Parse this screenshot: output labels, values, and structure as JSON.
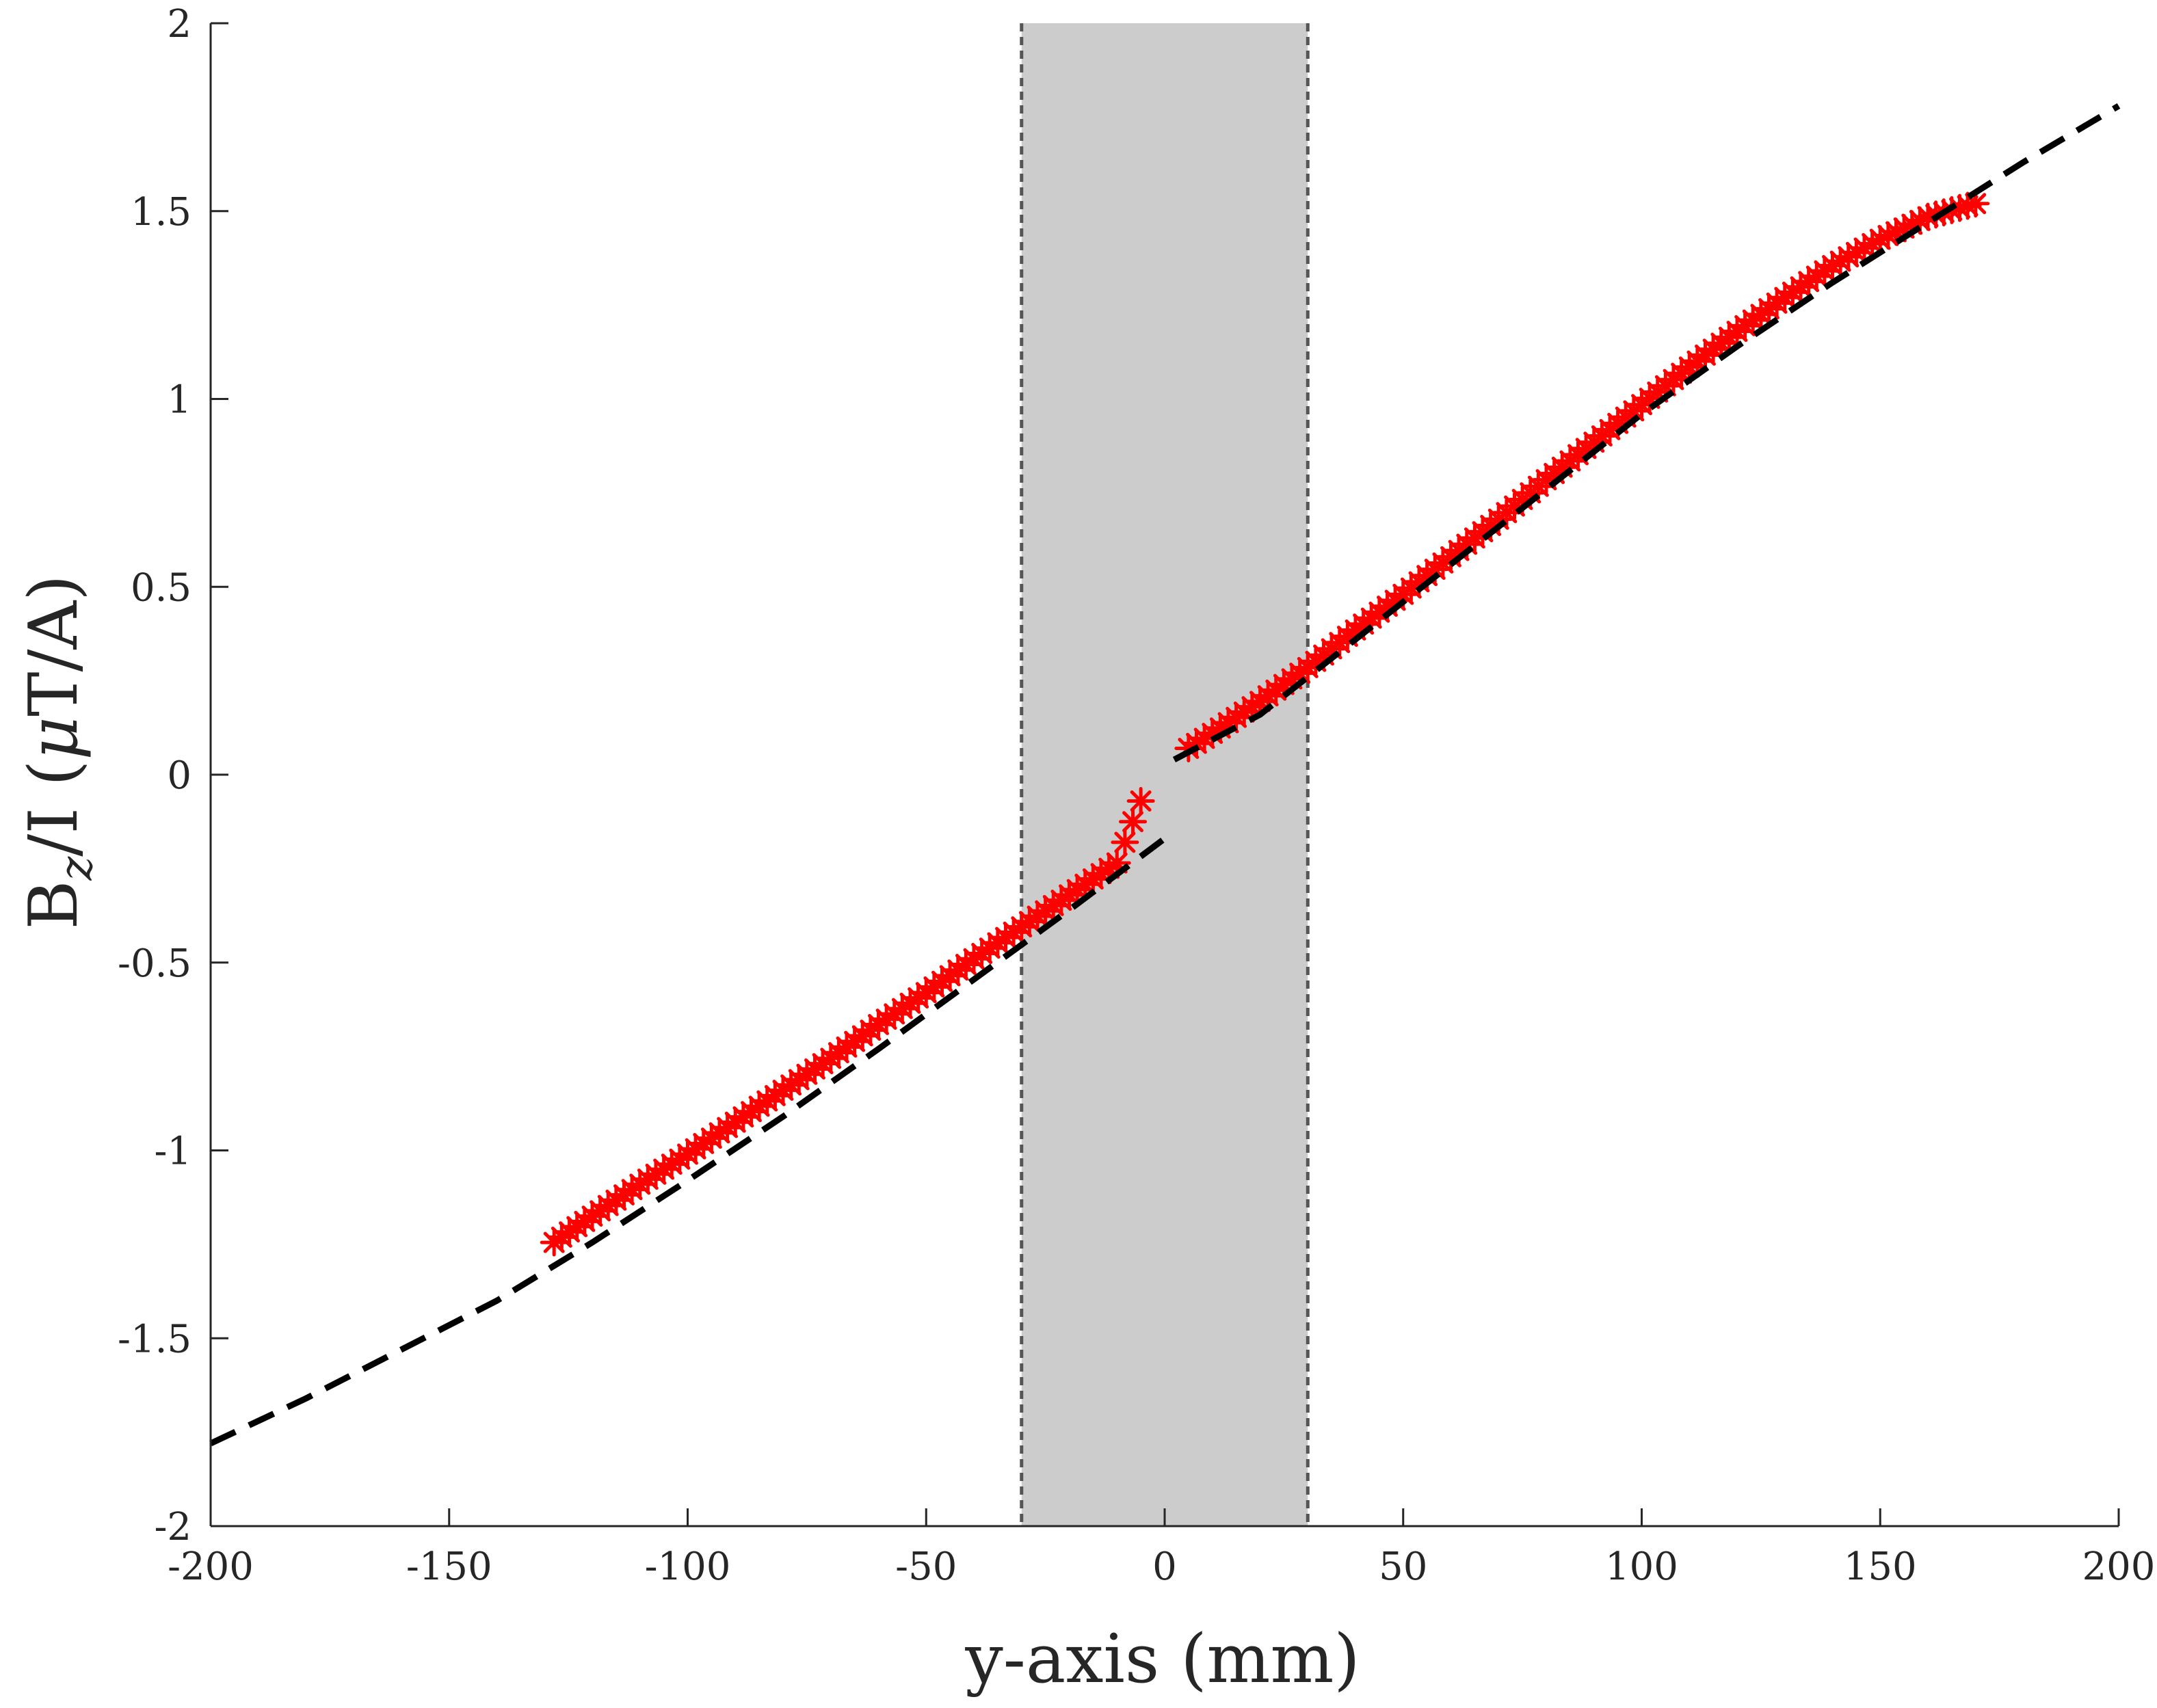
{
  "chart_data": {
    "type": "line",
    "xlabel": "y-axis (mm)",
    "ylabel": {
      "main": "B",
      "subscript": "z",
      "rest": "/I (",
      "mu": "μ",
      "unit": "T/A)"
    },
    "xlim": [
      -200,
      200
    ],
    "ylim": [
      -2,
      2
    ],
    "xticks": [
      -200,
      -150,
      -100,
      -50,
      0,
      50,
      100,
      150,
      200
    ],
    "yticks": [
      -2,
      -1.5,
      -1,
      -0.5,
      0,
      0.5,
      1,
      1.5,
      2
    ],
    "xtick_labels": [
      "-200",
      "-150",
      "-100",
      "-50",
      "0",
      "50",
      "100",
      "150",
      "200"
    ],
    "ytick_labels": [
      "-2",
      "-1.5",
      "-1",
      "-0.5",
      "0",
      "0.5",
      "1",
      "1.5",
      "2"
    ],
    "grid": false,
    "shaded_region": {
      "x": [
        -30,
        30
      ],
      "fill_color": "#cccccc",
      "edge_color": "#555555",
      "edge_style": "dotted"
    },
    "series": [
      {
        "style": "dashed-line",
        "color": "#000000",
        "x": [
          -200,
          -180,
          -160,
          -140,
          -120,
          -100,
          -80,
          -60,
          -40,
          -20,
          0,
          20,
          40,
          60,
          80,
          100,
          120,
          140,
          160,
          180,
          200
        ],
        "y": [
          -1.78,
          -1.66,
          -1.53,
          -1.4,
          -1.245,
          -1.08,
          -0.91,
          -0.73,
          -0.545,
          -0.36,
          -0.17,
          0.16,
          0.36,
          0.56,
          0.76,
          0.96,
          1.14,
          1.31,
          1.47,
          1.63,
          1.78
        ]
      },
      {
        "style": "asterisk-markers",
        "color": "#ff0000",
        "x": [
          -128,
          -120,
          -110,
          -100,
          -90,
          -80,
          -70,
          -60,
          -50,
          -40,
          -30,
          -20,
          -10,
          -5,
          5,
          10,
          20,
          30,
          40,
          50,
          60,
          70,
          80,
          90,
          100,
          110,
          120,
          130,
          140,
          150,
          160,
          170
        ],
        "y": [
          -1.245,
          -1.175,
          -1.09,
          -1.01,
          -0.925,
          -0.84,
          -0.755,
          -0.665,
          -0.58,
          -0.49,
          -0.405,
          -0.32,
          -0.235,
          -0.07,
          0.07,
          0.11,
          0.195,
          0.285,
          0.385,
          0.48,
          0.58,
          0.68,
          0.785,
          0.885,
          0.985,
          1.085,
          1.18,
          1.27,
          1.355,
          1.425,
          1.485,
          1.52
        ]
      }
    ]
  }
}
